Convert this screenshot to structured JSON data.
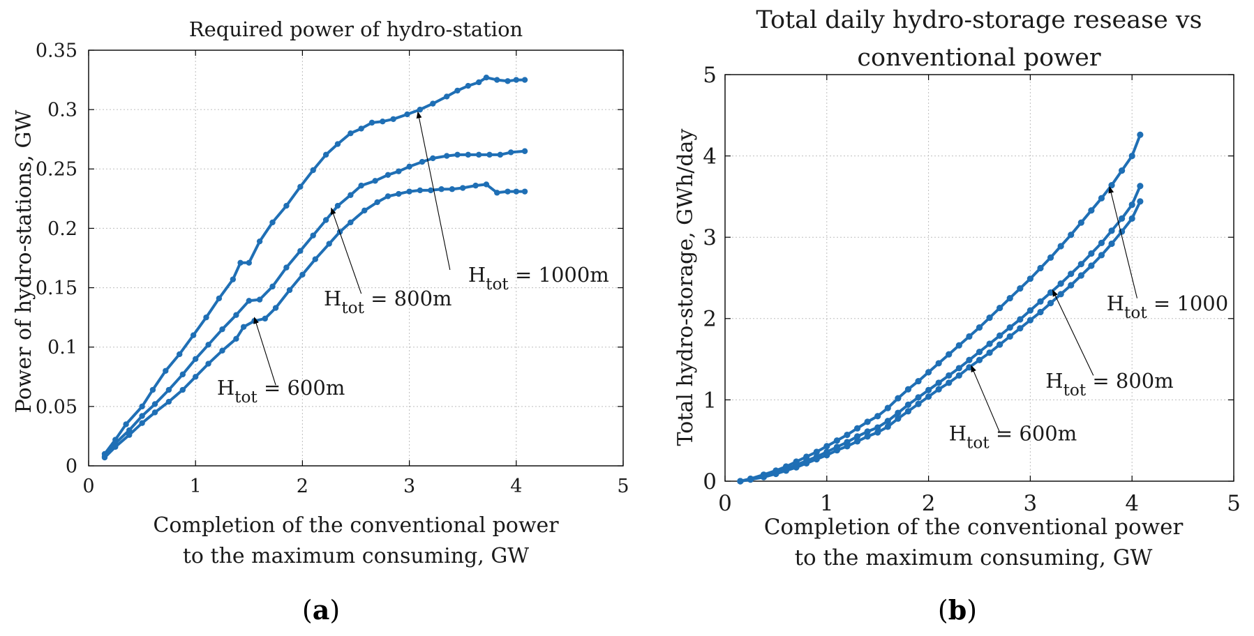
{
  "series_color": "#1f6fb5",
  "chart_data": [
    {
      "id": "a",
      "type": "line",
      "title": "Required power of hydro-station",
      "xlabel_lines": [
        "Completion of the conventional power",
        "to the maximum consuming, GW"
      ],
      "ylabel": "Power of hydro-stations, GW",
      "caption": {
        "open": "(",
        "letter": "a",
        "close": ")"
      },
      "xlim": [
        0,
        5
      ],
      "ylim": [
        0,
        0.35
      ],
      "xticks": [
        0,
        1,
        2,
        3,
        4,
        5
      ],
      "xtick_labels": [
        "0",
        "1",
        "2",
        "3",
        "4",
        "5"
      ],
      "yticks": [
        0,
        0.05,
        0.1,
        0.15,
        0.2,
        0.25,
        0.3,
        0.35
      ],
      "ytick_labels": [
        "0",
        "0.05",
        "0.1",
        "0.15",
        "0.2",
        "0.25",
        "0.3",
        "0.35"
      ],
      "grid": true,
      "series": [
        {
          "name": "H_tot = 1000m",
          "x": [
            0.15,
            0.25,
            0.35,
            0.5,
            0.6,
            0.72,
            0.85,
            0.98,
            1.1,
            1.22,
            1.35,
            1.42,
            1.5,
            1.6,
            1.72,
            1.85,
            1.98,
            2.1,
            2.22,
            2.33,
            2.45,
            2.55,
            2.65,
            2.75,
            2.85,
            2.98,
            3.1,
            3.22,
            3.35,
            3.45,
            3.55,
            3.65,
            3.72,
            3.82,
            3.92,
            4.0,
            4.08
          ],
          "y": [
            0.01,
            0.022,
            0.035,
            0.05,
            0.064,
            0.08,
            0.094,
            0.11,
            0.125,
            0.141,
            0.157,
            0.171,
            0.171,
            0.189,
            0.205,
            0.219,
            0.235,
            0.249,
            0.262,
            0.271,
            0.28,
            0.284,
            0.289,
            0.29,
            0.292,
            0.296,
            0.3,
            0.305,
            0.311,
            0.316,
            0.32,
            0.323,
            0.327,
            0.325,
            0.324,
            0.325,
            0.325
          ]
        },
        {
          "name": "H_tot = 800m",
          "x": [
            0.15,
            0.25,
            0.38,
            0.5,
            0.62,
            0.75,
            0.88,
            1.0,
            1.12,
            1.25,
            1.38,
            1.5,
            1.6,
            1.72,
            1.85,
            1.98,
            2.1,
            2.22,
            2.33,
            2.45,
            2.55,
            2.68,
            2.8,
            2.9,
            3.0,
            3.12,
            3.22,
            3.35,
            3.45,
            3.55,
            3.65,
            3.75,
            3.85,
            3.95,
            4.08
          ],
          "y": [
            0.008,
            0.019,
            0.03,
            0.042,
            0.052,
            0.064,
            0.077,
            0.09,
            0.102,
            0.115,
            0.127,
            0.139,
            0.14,
            0.151,
            0.167,
            0.181,
            0.194,
            0.207,
            0.219,
            0.228,
            0.236,
            0.24,
            0.245,
            0.248,
            0.252,
            0.256,
            0.259,
            0.261,
            0.262,
            0.262,
            0.262,
            0.262,
            0.262,
            0.264,
            0.265
          ]
        },
        {
          "name": "H_tot = 600m",
          "x": [
            0.15,
            0.25,
            0.38,
            0.5,
            0.62,
            0.75,
            0.88,
            1.0,
            1.12,
            1.25,
            1.38,
            1.45,
            1.55,
            1.65,
            1.75,
            1.88,
            2.0,
            2.12,
            2.25,
            2.35,
            2.45,
            2.58,
            2.7,
            2.8,
            2.9,
            3.0,
            3.1,
            3.2,
            3.3,
            3.4,
            3.5,
            3.62,
            3.72,
            3.82,
            3.92,
            4.0,
            4.08
          ],
          "y": [
            0.007,
            0.016,
            0.026,
            0.036,
            0.045,
            0.054,
            0.064,
            0.075,
            0.086,
            0.097,
            0.107,
            0.117,
            0.122,
            0.124,
            0.133,
            0.148,
            0.161,
            0.174,
            0.187,
            0.197,
            0.205,
            0.215,
            0.222,
            0.227,
            0.229,
            0.231,
            0.232,
            0.232,
            0.233,
            0.233,
            0.234,
            0.236,
            0.237,
            0.23,
            0.231,
            0.231,
            0.231
          ]
        }
      ],
      "annotations": [
        {
          "label_main": "H",
          "label_sub": "tot",
          "label_rest": " = 1000m",
          "text_at": [
            3.55,
            0.155
          ],
          "arrow_from": [
            3.38,
            0.165
          ],
          "arrow_to": [
            3.08,
            0.298
          ]
        },
        {
          "label_main": "H",
          "label_sub": "tot",
          "label_rest": " = 800m",
          "text_at": [
            2.2,
            0.135
          ],
          "arrow_from": [
            2.55,
            0.145
          ],
          "arrow_to": [
            2.27,
            0.217
          ]
        },
        {
          "label_main": "H",
          "label_sub": "tot",
          "label_rest": " = 600m",
          "text_at": [
            1.2,
            0.06
          ],
          "arrow_from": [
            1.75,
            0.068
          ],
          "arrow_to": [
            1.55,
            0.125
          ]
        }
      ]
    },
    {
      "id": "b",
      "type": "line",
      "title_lines": [
        "Total daily hydro-storage resease vs",
        "conventional power"
      ],
      "xlabel_lines": [
        "Completion of the conventional power",
        "to the maximum consuming, GW"
      ],
      "ylabel": "Total hydro-storage, GWh/day",
      "caption": {
        "open": "(",
        "letter": "b",
        "close": ")"
      },
      "xlim": [
        0,
        5
      ],
      "ylim": [
        0,
        5
      ],
      "xticks": [
        0,
        1,
        2,
        3,
        4,
        5
      ],
      "xtick_labels": [
        "0",
        "1",
        "2",
        "3",
        "4",
        "5"
      ],
      "yticks": [
        0,
        1,
        2,
        3,
        4,
        5
      ],
      "ytick_labels": [
        "0",
        "1",
        "2",
        "3",
        "4",
        "5"
      ],
      "grid": true,
      "series": [
        {
          "name": "H_tot = 1000",
          "x": [
            0.15,
            0.25,
            0.38,
            0.5,
            0.6,
            0.7,
            0.8,
            0.9,
            1.0,
            1.1,
            1.2,
            1.3,
            1.4,
            1.5,
            1.6,
            1.7,
            1.8,
            1.9,
            2.0,
            2.1,
            2.2,
            2.3,
            2.4,
            2.5,
            2.6,
            2.7,
            2.8,
            2.9,
            3.0,
            3.1,
            3.2,
            3.3,
            3.4,
            3.5,
            3.6,
            3.7,
            3.8,
            3.9,
            4.0,
            4.08
          ],
          "y": [
            0.0,
            0.03,
            0.08,
            0.13,
            0.18,
            0.24,
            0.3,
            0.36,
            0.43,
            0.5,
            0.57,
            0.65,
            0.73,
            0.8,
            0.9,
            1.02,
            1.13,
            1.23,
            1.34,
            1.45,
            1.56,
            1.67,
            1.78,
            1.89,
            2.01,
            2.13,
            2.25,
            2.37,
            2.49,
            2.62,
            2.75,
            2.89,
            3.03,
            3.18,
            3.33,
            3.48,
            3.64,
            3.82,
            4.0,
            4.26
          ]
        },
        {
          "name": "H_tot = 800m",
          "x": [
            0.15,
            0.25,
            0.38,
            0.5,
            0.6,
            0.7,
            0.8,
            0.9,
            1.0,
            1.1,
            1.2,
            1.3,
            1.4,
            1.5,
            1.6,
            1.7,
            1.8,
            1.9,
            2.0,
            2.1,
            2.2,
            2.3,
            2.4,
            2.5,
            2.6,
            2.7,
            2.8,
            2.9,
            3.0,
            3.1,
            3.2,
            3.3,
            3.4,
            3.5,
            3.6,
            3.7,
            3.8,
            3.9,
            4.0,
            4.08
          ],
          "y": [
            0.0,
            0.02,
            0.06,
            0.1,
            0.15,
            0.2,
            0.25,
            0.3,
            0.36,
            0.42,
            0.48,
            0.55,
            0.61,
            0.66,
            0.74,
            0.84,
            0.94,
            1.03,
            1.12,
            1.21,
            1.3,
            1.39,
            1.49,
            1.59,
            1.69,
            1.79,
            1.89,
            1.99,
            2.1,
            2.21,
            2.32,
            2.43,
            2.55,
            2.67,
            2.8,
            2.93,
            3.08,
            3.23,
            3.4,
            3.63
          ]
        },
        {
          "name": "H_tot = 600m",
          "x": [
            0.15,
            0.25,
            0.38,
            0.5,
            0.6,
            0.7,
            0.8,
            0.9,
            1.0,
            1.1,
            1.2,
            1.3,
            1.4,
            1.5,
            1.6,
            1.7,
            1.8,
            1.9,
            2.0,
            2.1,
            2.2,
            2.3,
            2.4,
            2.5,
            2.6,
            2.7,
            2.8,
            2.9,
            3.0,
            3.1,
            3.2,
            3.3,
            3.4,
            3.5,
            3.6,
            3.7,
            3.8,
            3.9,
            4.0,
            4.08
          ],
          "y": [
            0.0,
            0.02,
            0.05,
            0.09,
            0.13,
            0.17,
            0.22,
            0.27,
            0.32,
            0.38,
            0.43,
            0.49,
            0.55,
            0.6,
            0.67,
            0.77,
            0.86,
            0.95,
            1.04,
            1.13,
            1.21,
            1.3,
            1.4,
            1.49,
            1.58,
            1.68,
            1.78,
            1.88,
            1.98,
            2.08,
            2.19,
            2.3,
            2.41,
            2.53,
            2.65,
            2.78,
            2.92,
            3.07,
            3.23,
            3.44
          ]
        }
      ],
      "annotations": [
        {
          "label_main": "H",
          "label_sub": "tot",
          "label_rest": " = 1000",
          "text_at": [
            3.75,
            2.1
          ],
          "arrow_from": [
            4.05,
            2.25
          ],
          "arrow_to": [
            3.78,
            3.62
          ]
        },
        {
          "label_main": "H",
          "label_sub": "tot",
          "label_rest": " = 800m",
          "text_at": [
            3.15,
            1.15
          ],
          "arrow_from": [
            3.62,
            1.3
          ],
          "arrow_to": [
            3.22,
            2.35
          ]
        },
        {
          "label_main": "H",
          "label_sub": "tot",
          "label_rest": " = 600m",
          "text_at": [
            2.2,
            0.5
          ],
          "arrow_from": [
            2.7,
            0.6
          ],
          "arrow_to": [
            2.42,
            1.42
          ]
        }
      ]
    }
  ]
}
